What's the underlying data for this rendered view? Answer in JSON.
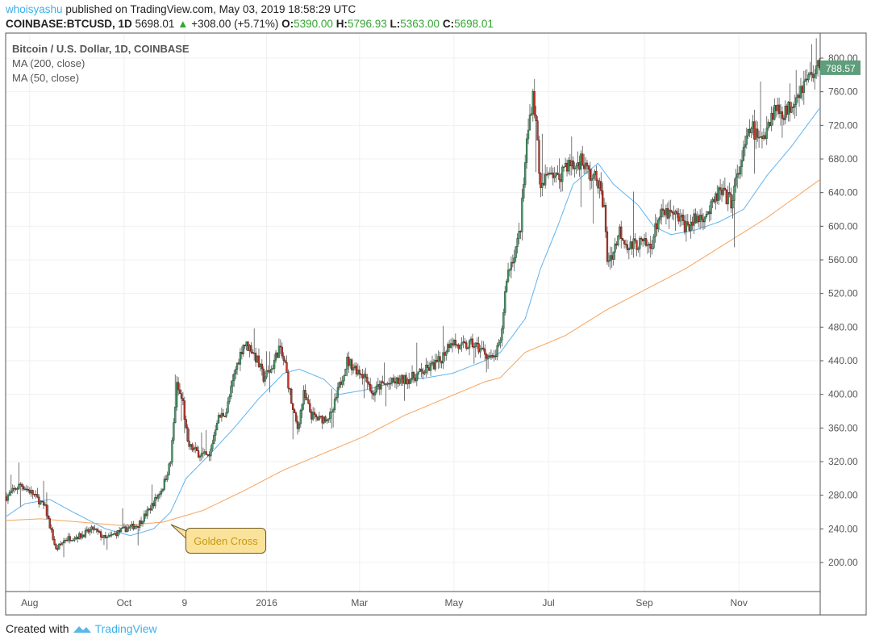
{
  "header": {
    "user": "whoisyashu",
    "published": "published on TradingView.com, May 03, 2019 18:58:29 UTC",
    "symbol": "COINBASE:BTCUSD, 1D",
    "last": "5698.01",
    "change": "+308.00 (+5.71%)",
    "o_label": "O:",
    "o": "5390.00",
    "h_label": "H:",
    "h": "5796.93",
    "l_label": "L:",
    "l": "5363.00",
    "c_label": "C:",
    "c": "5698.01"
  },
  "legend": {
    "title": "Bitcoin / U.S. Dollar, 1D, COINBASE",
    "ma200": "MA (200, close)",
    "ma50": "MA (50, close)"
  },
  "annotation": "Golden Cross",
  "footer": {
    "created": "Created with",
    "brand": "TradingView"
  },
  "colors": {
    "up": "#4f9d6e",
    "down": "#c0392b",
    "ma50": "#5fb4f0",
    "ma200": "#f7a35c",
    "last_badge": "#5e9e7a"
  },
  "chart_data": {
    "type": "candlestick",
    "title": "Bitcoin / U.S. Dollar, 1D, COINBASE",
    "x_unit": "days since 2015-07-17",
    "ylim": [
      160,
      820
    ],
    "y_ticks": [
      "200.00",
      "240.00",
      "280.00",
      "320.00",
      "360.00",
      "400.00",
      "440.00",
      "480.00",
      "520.00",
      "560.00",
      "600.00",
      "640.00",
      "680.00",
      "720.00",
      "760.00",
      "800.00"
    ],
    "x_ticks": [
      {
        "label": "Aug",
        "day": 15
      },
      {
        "label": "Oct",
        "day": 76
      },
      {
        "label": "9",
        "day": 115
      },
      {
        "label": "2016",
        "day": 168
      },
      {
        "label": "Mar",
        "day": 228
      },
      {
        "label": "May",
        "day": 289
      },
      {
        "label": "Jul",
        "day": 350
      },
      {
        "label": "Sep",
        "day": 412
      },
      {
        "label": "Nov",
        "day": 473
      }
    ],
    "last_price": "788.57",
    "close_path": [
      [
        0,
        278
      ],
      [
        9,
        293
      ],
      [
        17,
        282
      ],
      [
        25,
        265
      ],
      [
        32,
        215
      ],
      [
        38,
        228
      ],
      [
        48,
        232
      ],
      [
        56,
        240
      ],
      [
        64,
        228
      ],
      [
        74,
        238
      ],
      [
        85,
        245
      ],
      [
        93,
        265
      ],
      [
        101,
        290
      ],
      [
        106,
        320
      ],
      [
        110,
        410
      ],
      [
        114,
        390
      ],
      [
        117,
        340
      ],
      [
        124,
        330
      ],
      [
        131,
        325
      ],
      [
        136,
        370
      ],
      [
        142,
        380
      ],
      [
        148,
        430
      ],
      [
        153,
        460
      ],
      [
        158,
        455
      ],
      [
        162,
        440
      ],
      [
        166,
        420
      ],
      [
        171,
        430
      ],
      [
        176,
        455
      ],
      [
        180,
        435
      ],
      [
        185,
        380
      ],
      [
        188,
        360
      ],
      [
        192,
        400
      ],
      [
        197,
        375
      ],
      [
        202,
        370
      ],
      [
        210,
        375
      ],
      [
        215,
        410
      ],
      [
        220,
        440
      ],
      [
        226,
        430
      ],
      [
        233,
        420
      ],
      [
        236,
        400
      ],
      [
        241,
        410
      ],
      [
        252,
        415
      ],
      [
        262,
        420
      ],
      [
        272,
        430
      ],
      [
        280,
        440
      ],
      [
        287,
        465
      ],
      [
        293,
        455
      ],
      [
        301,
        460
      ],
      [
        309,
        450
      ],
      [
        314,
        440
      ],
      [
        319,
        460
      ],
      [
        323,
        540
      ],
      [
        330,
        580
      ],
      [
        332,
        600
      ],
      [
        336,
        700
      ],
      [
        340,
        760
      ],
      [
        343,
        700
      ],
      [
        345,
        640
      ],
      [
        351,
        670
      ],
      [
        356,
        655
      ],
      [
        361,
        675
      ],
      [
        367,
        670
      ],
      [
        371,
        680
      ],
      [
        377,
        660
      ],
      [
        382,
        655
      ],
      [
        386,
        620
      ],
      [
        388,
        560
      ],
      [
        392,
        570
      ],
      [
        396,
        595
      ],
      [
        402,
        575
      ],
      [
        408,
        580
      ],
      [
        416,
        575
      ],
      [
        421,
        610
      ],
      [
        426,
        615
      ],
      [
        434,
        610
      ],
      [
        439,
        600
      ],
      [
        447,
        610
      ],
      [
        455,
        620
      ],
      [
        460,
        640
      ],
      [
        468,
        630
      ],
      [
        475,
        680
      ],
      [
        481,
        720
      ],
      [
        486,
        700
      ],
      [
        490,
        715
      ],
      [
        496,
        740
      ],
      [
        504,
        735
      ],
      [
        509,
        755
      ],
      [
        515,
        770
      ],
      [
        522,
        785
      ],
      [
        525,
        788.57
      ]
    ],
    "series": [
      {
        "name": "MA (50, close)",
        "points": [
          [
            0,
            255
          ],
          [
            12,
            270
          ],
          [
            28,
            275
          ],
          [
            43,
            260
          ],
          [
            64,
            240
          ],
          [
            80,
            232
          ],
          [
            95,
            240
          ],
          [
            106,
            260
          ],
          [
            116,
            300
          ],
          [
            132,
            330
          ],
          [
            147,
            360
          ],
          [
            163,
            395
          ],
          [
            179,
            425
          ],
          [
            189,
            430
          ],
          [
            205,
            418
          ],
          [
            215,
            400
          ],
          [
            231,
            405
          ],
          [
            252,
            415
          ],
          [
            272,
            420
          ],
          [
            288,
            425
          ],
          [
            309,
            440
          ],
          [
            319,
            450
          ],
          [
            335,
            490
          ],
          [
            345,
            550
          ],
          [
            356,
            600
          ],
          [
            366,
            650
          ],
          [
            382,
            675
          ],
          [
            392,
            650
          ],
          [
            408,
            625
          ],
          [
            418,
            600
          ],
          [
            429,
            590
          ],
          [
            444,
            595
          ],
          [
            460,
            605
          ],
          [
            476,
            620
          ],
          [
            491,
            660
          ],
          [
            507,
            695
          ],
          [
            525,
            740
          ]
        ]
      },
      {
        "name": "MA (200, close)",
        "points": [
          [
            0,
            250
          ],
          [
            22,
            252
          ],
          [
            48,
            248
          ],
          [
            74,
            244
          ],
          [
            101,
            248
          ],
          [
            127,
            262
          ],
          [
            153,
            285
          ],
          [
            179,
            310
          ],
          [
            205,
            330
          ],
          [
            231,
            350
          ],
          [
            257,
            375
          ],
          [
            283,
            395
          ],
          [
            309,
            415
          ],
          [
            319,
            420
          ],
          [
            335,
            450
          ],
          [
            361,
            470
          ],
          [
            387,
            500
          ],
          [
            413,
            525
          ],
          [
            439,
            550
          ],
          [
            465,
            580
          ],
          [
            491,
            610
          ],
          [
            525,
            655
          ]
        ]
      }
    ]
  }
}
